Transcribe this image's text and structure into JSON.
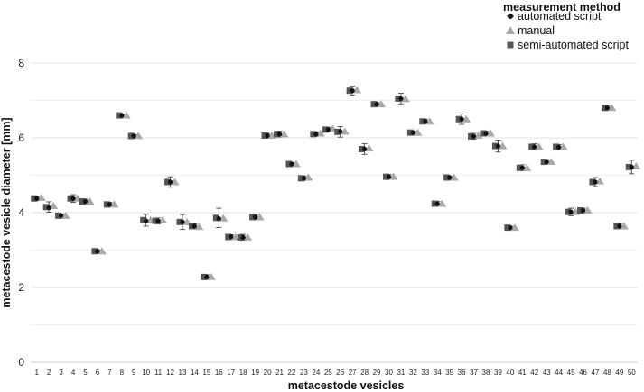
{
  "chart_data": {
    "type": "scatter",
    "xlabel": "metacestode vesicles",
    "ylabel": "metacestode vesicle diameter [mm]",
    "ylim": [
      0,
      8.5
    ],
    "yticks": [
      "0",
      "2",
      "4",
      "6",
      "8"
    ],
    "grid": "horizontal",
    "legend": {
      "title": "measurement method",
      "placement": "top-right",
      "entries": [
        "automated script",
        "manual",
        "semi-automated script"
      ]
    },
    "categories": [
      "1",
      "2",
      "3",
      "4",
      "5",
      "6",
      "7",
      "8",
      "9",
      "10",
      "11",
      "12",
      "13",
      "14",
      "15",
      "16",
      "17",
      "18",
      "19",
      "20",
      "21",
      "22",
      "23",
      "24",
      "25",
      "26",
      "27",
      "28",
      "29",
      "30",
      "31",
      "32",
      "33",
      "34",
      "35",
      "36",
      "37",
      "38",
      "39",
      "40",
      "41",
      "42",
      "43",
      "44",
      "45",
      "46",
      "47",
      "48",
      "49",
      "50"
    ],
    "series": [
      {
        "name": "automated script",
        "marker": "circle",
        "color": "#111111",
        "values": [
          4.38,
          4.13,
          3.92,
          4.38,
          4.3,
          2.97,
          4.22,
          6.6,
          6.05,
          3.78,
          3.78,
          4.82,
          3.75,
          3.64,
          2.28,
          3.84,
          3.36,
          3.34,
          3.88,
          6.06,
          6.1,
          5.3,
          4.92,
          6.1,
          6.22,
          6.17,
          7.26,
          5.7,
          6.9,
          4.96,
          7.05,
          6.14,
          6.44,
          4.24,
          4.94,
          6.5,
          6.04,
          6.12,
          5.78,
          3.6,
          5.2,
          5.76,
          5.36,
          5.75,
          4.02,
          4.06,
          4.82,
          6.8,
          3.64,
          5.22
        ]
      },
      {
        "name": "manual",
        "marker": "triangle",
        "color": "#a9a9a9",
        "values": [
          4.4,
          4.18,
          3.92,
          4.38,
          4.3,
          2.97,
          4.22,
          6.6,
          6.05,
          3.8,
          3.8,
          4.82,
          3.75,
          3.62,
          2.28,
          3.85,
          3.35,
          3.34,
          3.88,
          6.06,
          6.1,
          5.3,
          4.94,
          6.12,
          6.24,
          6.17,
          7.28,
          5.72,
          6.9,
          4.96,
          7.04,
          6.14,
          6.44,
          4.24,
          4.94,
          6.5,
          6.06,
          6.12,
          5.78,
          3.6,
          5.2,
          5.76,
          5.36,
          5.76,
          4.02,
          4.06,
          4.84,
          6.8,
          3.64,
          5.24
        ]
      },
      {
        "name": "semi-automated script",
        "marker": "square",
        "color": "#555555",
        "values": [
          4.38,
          4.15,
          3.92,
          4.38,
          4.3,
          2.97,
          4.22,
          6.6,
          6.05,
          3.8,
          3.78,
          4.82,
          3.75,
          3.64,
          2.28,
          3.86,
          3.35,
          3.34,
          3.88,
          6.06,
          6.1,
          5.3,
          4.92,
          6.1,
          6.22,
          6.16,
          7.26,
          5.7,
          6.9,
          4.96,
          7.05,
          6.14,
          6.44,
          4.24,
          4.94,
          6.5,
          6.04,
          6.12,
          5.78,
          3.6,
          5.2,
          5.76,
          5.36,
          5.76,
          4.02,
          4.06,
          4.82,
          6.8,
          3.64,
          5.22
        ],
        "error": [
          0.06,
          0.14,
          0.04,
          0.1,
          0.06,
          0.04,
          0.06,
          0.04,
          0.04,
          0.16,
          0.08,
          0.14,
          0.2,
          0.06,
          0.06,
          0.26,
          0.06,
          0.08,
          0.06,
          0.06,
          0.08,
          0.04,
          0.06,
          0.06,
          0.06,
          0.14,
          0.12,
          0.14,
          0.04,
          0.06,
          0.14,
          0.04,
          0.06,
          0.06,
          0.04,
          0.14,
          0.08,
          0.06,
          0.16,
          0.04,
          0.08,
          0.08,
          0.06,
          0.06,
          0.1,
          0.06,
          0.12,
          0.06,
          0.06,
          0.18
        ]
      }
    ]
  }
}
